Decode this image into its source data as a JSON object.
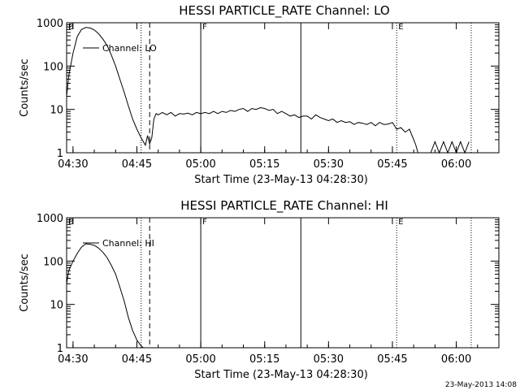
{
  "timestamp": "23-May-2013 14:08",
  "colors": {
    "background": "#ffffff",
    "ink": "#000000"
  },
  "chart_data": [
    {
      "type": "line",
      "title": "HESSI PARTICLE_RATE Channel: LO",
      "xlabel": "Start Time (23-May-13 04:28:30)",
      "ylabel": "Counts/sec",
      "yscale": "log",
      "ylim": [
        1,
        1000
      ],
      "xlim": [
        "04:28:30",
        "06:10:00"
      ],
      "x_ticks": [
        "04:30",
        "04:45",
        "05:00",
        "05:15",
        "05:30",
        "05:45",
        "06:00"
      ],
      "y_ticks": [
        "1",
        "10",
        "100",
        "1000"
      ],
      "legend": {
        "entries": [
          "Channel: LO"
        ],
        "placement": "upper-left"
      },
      "markers": [
        {
          "time": "04:28:30",
          "label": "B",
          "style": "label"
        },
        {
          "time": "04:46:00",
          "label": "",
          "style": "dotted"
        },
        {
          "time": "04:48:00",
          "label": "",
          "style": "dashed"
        },
        {
          "time": "05:00:00",
          "label": "F",
          "style": "solid"
        },
        {
          "time": "05:23:30",
          "label": "",
          "style": "solid"
        },
        {
          "time": "05:46:00",
          "label": "E",
          "style": "dotted"
        },
        {
          "time": "06:03:30",
          "label": "",
          "style": "dotted"
        }
      ],
      "series": [
        {
          "name": "Channel: LO",
          "x": [
            "04:28:30",
            "04:29:00",
            "04:30:00",
            "04:31:00",
            "04:32:00",
            "04:33:00",
            "04:34:00",
            "04:35:00",
            "04:36:00",
            "04:37:00",
            "04:38:00",
            "04:39:00",
            "04:40:00",
            "04:41:00",
            "04:42:00",
            "04:43:00",
            "04:44:00",
            "04:45:00",
            "04:46:00",
            "04:47:00",
            "04:47:30",
            "04:48:00",
            "04:48:30",
            "04:49:00",
            "04:49:30",
            "04:50:00",
            "04:51:00",
            "04:52:00",
            "04:53:00",
            "04:54:00",
            "04:55:00",
            "04:56:00",
            "04:57:00",
            "04:58:00",
            "04:59:00",
            "05:00:00",
            "05:01:00",
            "05:02:00",
            "05:03:00",
            "05:04:00",
            "05:05:00",
            "05:06:00",
            "05:07:00",
            "05:08:00",
            "05:09:00",
            "05:10:00",
            "05:11:00",
            "05:12:00",
            "05:13:00",
            "05:14:00",
            "05:15:00",
            "05:16:00",
            "05:17:00",
            "05:18:00",
            "05:19:00",
            "05:20:00",
            "05:21:00",
            "05:22:00",
            "05:23:00",
            "05:24:00",
            "05:25:00",
            "05:26:00",
            "05:27:00",
            "05:28:00",
            "05:29:00",
            "05:30:00",
            "05:31:00",
            "05:32:00",
            "05:33:00",
            "05:34:00",
            "05:35:00",
            "05:36:00",
            "05:37:00",
            "05:38:00",
            "05:39:00",
            "05:40:00",
            "05:41:00",
            "05:42:00",
            "05:43:00",
            "05:44:00",
            "05:45:00",
            "05:46:00",
            "05:47:00",
            "05:48:00",
            "05:49:00",
            "05:50:00",
            "05:50:30",
            "05:51:00",
            "05:52:00",
            "05:53:00",
            "05:54:00",
            "05:55:00",
            "05:56:00",
            "05:57:00",
            "05:58:00",
            "05:59:00",
            "06:00:00",
            "06:01:00",
            "06:02:00",
            "06:03:00"
          ],
          "values": [
            20,
            60,
            200,
            480,
            700,
            780,
            760,
            680,
            560,
            420,
            300,
            180,
            100,
            50,
            25,
            12,
            6,
            3.5,
            2.2,
            1.5,
            2.5,
            1.6,
            2.2,
            6,
            8,
            7.5,
            8.5,
            7.5,
            8.5,
            7,
            8,
            7.8,
            8.2,
            7.5,
            8.5,
            8,
            8.5,
            8,
            9,
            8,
            9,
            8.5,
            9.5,
            9,
            10,
            10.5,
            9,
            10.5,
            10,
            11,
            10.5,
            9.5,
            10,
            8,
            9,
            8,
            7,
            7.5,
            6.5,
            7,
            7,
            6,
            7.5,
            6.5,
            6,
            5.5,
            6,
            5,
            5.5,
            5,
            5.2,
            4.5,
            5,
            4.8,
            4.5,
            5,
            4.2,
            5,
            4.5,
            4.6,
            5,
            3.5,
            3.8,
            3,
            3.5,
            2,
            1.5,
            1,
            1,
            1,
            1,
            1.8,
            1,
            1.8,
            1,
            1.8,
            1,
            1.8,
            1,
            1.8
          ]
        }
      ]
    },
    {
      "type": "line",
      "title": "HESSI PARTICLE_RATE Channel: HI",
      "xlabel": "Start Time (23-May-13 04:28:30)",
      "ylabel": "Counts/sec",
      "yscale": "log",
      "ylim": [
        1,
        1000
      ],
      "xlim": [
        "04:28:30",
        "06:10:00"
      ],
      "x_ticks": [
        "04:30",
        "04:45",
        "05:00",
        "05:15",
        "05:30",
        "05:45",
        "06:00"
      ],
      "y_ticks": [
        "1",
        "10",
        "100",
        "1000"
      ],
      "legend": {
        "entries": [
          "Channel: HI"
        ],
        "placement": "upper-left"
      },
      "markers": [
        {
          "time": "04:28:30",
          "label": "B",
          "style": "label"
        },
        {
          "time": "04:46:00",
          "label": "",
          "style": "dotted"
        },
        {
          "time": "04:48:00",
          "label": "",
          "style": "dashed"
        },
        {
          "time": "05:00:00",
          "label": "F",
          "style": "solid"
        },
        {
          "time": "05:23:30",
          "label": "",
          "style": "solid"
        },
        {
          "time": "05:46:00",
          "label": "E",
          "style": "dotted"
        },
        {
          "time": "06:03:30",
          "label": "",
          "style": "dotted"
        }
      ],
      "series": [
        {
          "name": "Channel: HI",
          "x": [
            "04:28:30",
            "04:29:00",
            "04:30:00",
            "04:31:00",
            "04:32:00",
            "04:33:00",
            "04:34:00",
            "04:35:00",
            "04:36:00",
            "04:37:00",
            "04:38:00",
            "04:39:00",
            "04:40:00",
            "04:41:00",
            "04:42:00",
            "04:43:00",
            "04:44:00",
            "04:45:00",
            "04:46:00",
            "04:46:30"
          ],
          "values": [
            30,
            60,
            100,
            150,
            210,
            250,
            245,
            230,
            200,
            160,
            120,
            80,
            50,
            25,
            12,
            5,
            2.5,
            1.5,
            1.1,
            1
          ]
        }
      ]
    }
  ]
}
